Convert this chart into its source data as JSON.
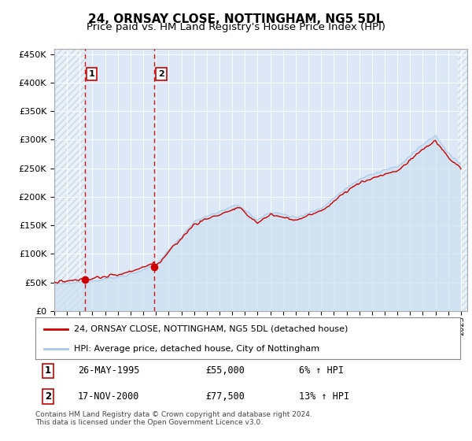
{
  "title": "24, ORNSAY CLOSE, NOTTINGHAM, NG5 5DL",
  "subtitle": "Price paid vs. HM Land Registry's House Price Index (HPI)",
  "ytick_values": [
    0,
    50000,
    100000,
    150000,
    200000,
    250000,
    300000,
    350000,
    400000,
    450000
  ],
  "ylim": [
    0,
    460000
  ],
  "xlim_start": 1993.0,
  "xlim_end": 2025.5,
  "hpi_color": "#a8c8e8",
  "hpi_fill_color": "#cce0f0",
  "price_color": "#cc0000",
  "background_plot": "#dce8f5",
  "background_fig": "#ffffff",
  "transaction1_x": 1995.39,
  "transaction1_y": 55000,
  "transaction2_x": 2000.88,
  "transaction2_y": 77500,
  "legend_line1": "24, ORNSAY CLOSE, NOTTINGHAM, NG5 5DL (detached house)",
  "legend_line2": "HPI: Average price, detached house, City of Nottingham",
  "annotation1_date": "26-MAY-1995",
  "annotation1_price": "£55,000",
  "annotation1_hpi": "6% ↑ HPI",
  "annotation2_date": "17-NOV-2000",
  "annotation2_price": "£77,500",
  "annotation2_hpi": "13% ↑ HPI",
  "footer": "Contains HM Land Registry data © Crown copyright and database right 2024.\nThis data is licensed under the Open Government Licence v3.0."
}
